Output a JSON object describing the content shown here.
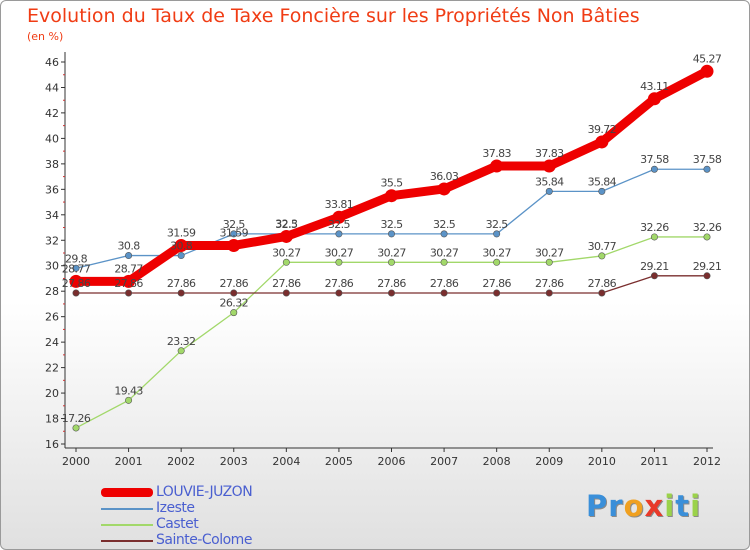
{
  "title": "Evolution du Taux de Taxe Foncière sur les Propriétés Non Bâties",
  "subtitle": "(en %)",
  "brand": {
    "letters": [
      "P",
      "r",
      "o",
      "x",
      "i",
      "t",
      "i"
    ],
    "colors": [
      "#3a8fd9",
      "#3a8fd9",
      "#f0a020",
      "#e83a2a",
      "#9bd24a",
      "#3a8fd9",
      "#9bd24a"
    ]
  },
  "chart_data": {
    "type": "line",
    "title": "Evolution du Taux de Taxe Foncière sur les Propriétés Non Bâties",
    "ylabel": "(en %)",
    "xlabel": "",
    "x": [
      "2000",
      "2001",
      "2002",
      "2003",
      "2004",
      "2005",
      "2006",
      "2007",
      "2008",
      "2009",
      "2010",
      "2011",
      "2012"
    ],
    "ylim": [
      16,
      46
    ],
    "yticks": [
      16,
      18,
      20,
      22,
      24,
      26,
      28,
      30,
      32,
      34,
      36,
      38,
      40,
      42,
      44,
      46
    ],
    "grid": false,
    "legend_position": "bottom-left",
    "series": [
      {
        "name": "LOUVIE-JUZON",
        "color": "#ee0000",
        "emphasis": "thick",
        "values": [
          28.77,
          28.77,
          31.59,
          31.59,
          32.3,
          33.81,
          35.5,
          36.03,
          37.83,
          37.83,
          39.72,
          43.11,
          45.27
        ],
        "labels": [
          "28.77",
          "28.77",
          "31.59",
          "31.59",
          "32.3",
          "33.81",
          "35.5",
          "36.03",
          "37.83",
          "37.83",
          "39.72",
          "43.11",
          "45.27"
        ]
      },
      {
        "name": "Izeste",
        "color": "#5b93c7",
        "emphasis": "thin",
        "values": [
          29.8,
          30.8,
          30.8,
          32.5,
          32.5,
          32.5,
          32.5,
          32.5,
          32.5,
          35.84,
          35.84,
          37.58,
          37.58
        ],
        "labels": [
          "29.8",
          "30.8",
          "30.8",
          "32.5",
          "32.5",
          "32.5",
          "32.5",
          "32.5",
          "32.5",
          "35.84",
          "35.84",
          "37.58",
          "37.58"
        ]
      },
      {
        "name": "Castet",
        "color": "#a2d86a",
        "emphasis": "thin",
        "values": [
          17.26,
          19.43,
          23.32,
          26.32,
          30.27,
          30.27,
          30.27,
          30.27,
          30.27,
          30.27,
          30.77,
          32.26,
          32.26
        ],
        "labels": [
          "17.26",
          "19.43",
          "23.32",
          "26.32",
          "30.27",
          "30.27",
          "30.27",
          "30.27",
          "30.27",
          "30.27",
          "30.77",
          "32.26",
          "32.26"
        ]
      },
      {
        "name": "Sainte-Colome",
        "color": "#7a2e2e",
        "emphasis": "thin",
        "values": [
          27.86,
          27.86,
          27.86,
          27.86,
          27.86,
          27.86,
          27.86,
          27.86,
          27.86,
          27.86,
          27.86,
          29.21,
          29.21
        ],
        "labels": [
          "27.86",
          "27.86",
          "27.86",
          "27.86",
          "27.86",
          "27.86",
          "27.86",
          "27.86",
          "27.86",
          "27.86",
          "27.86",
          "29.21",
          "29.21"
        ]
      }
    ]
  }
}
